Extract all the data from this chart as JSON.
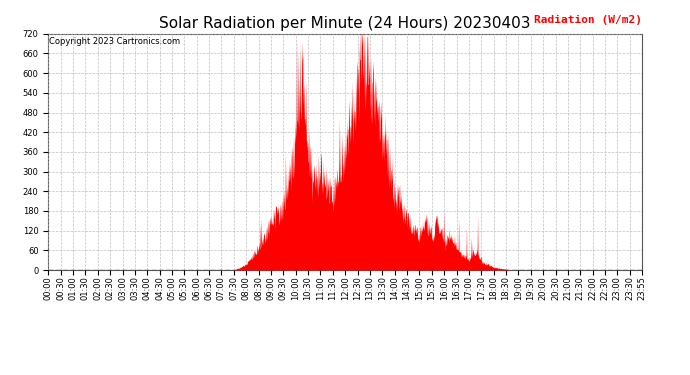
{
  "title": "Solar Radiation per Minute (24 Hours) 20230403",
  "ylabel": "Radiation (W/m2)",
  "ylabel_color": "#ff0000",
  "copyright": "Copyright 2023 Cartronics.com",
  "fill_color": "#ff0000",
  "hline_color": "#ff0000",
  "grid_color": "#b0b0b0",
  "bg_color": "#ffffff",
  "ylim": [
    0.0,
    720.0
  ],
  "yticks": [
    0.0,
    60.0,
    120.0,
    180.0,
    240.0,
    300.0,
    360.0,
    420.0,
    480.0,
    540.0,
    600.0,
    660.0,
    720.0
  ],
  "title_fontsize": 11,
  "tick_fontsize": 6,
  "copyright_fontsize": 6,
  "ylabel_fontsize": 8
}
